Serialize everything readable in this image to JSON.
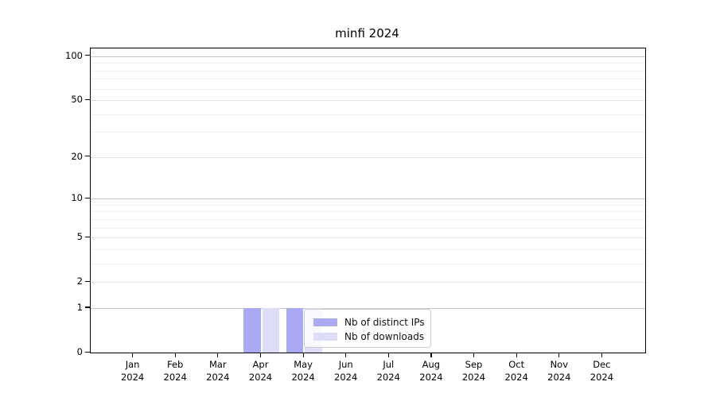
{
  "chart_data": {
    "type": "bar",
    "title": "minfi 2024",
    "x_categories": [
      {
        "month": "Jan",
        "year": "2024"
      },
      {
        "month": "Feb",
        "year": "2024"
      },
      {
        "month": "Mar",
        "year": "2024"
      },
      {
        "month": "Apr",
        "year": "2024"
      },
      {
        "month": "May",
        "year": "2024"
      },
      {
        "month": "Jun",
        "year": "2024"
      },
      {
        "month": "Jul",
        "year": "2024"
      },
      {
        "month": "Aug",
        "year": "2024"
      },
      {
        "month": "Sep",
        "year": "2024"
      },
      {
        "month": "Oct",
        "year": "2024"
      },
      {
        "month": "Nov",
        "year": "2024"
      },
      {
        "month": "Dec",
        "year": "2024"
      }
    ],
    "series": [
      {
        "name": "Nb of distinct IPs",
        "color": "#aaaaf2",
        "values": [
          0,
          0,
          0,
          1,
          1,
          0,
          0,
          0,
          0,
          0,
          0,
          0
        ]
      },
      {
        "name": "Nb of downloads",
        "color": "#ddddf8",
        "values": [
          0,
          0,
          0,
          1,
          1,
          0,
          0,
          0,
          0,
          0,
          0,
          0
        ]
      }
    ],
    "yticks": [
      0,
      1,
      2,
      5,
      10,
      20,
      50,
      100
    ],
    "y_scale": "log10(1+value)",
    "ylim": [
      0,
      113
    ],
    "grid": true,
    "legend_position": "inside-bottom-center"
  }
}
